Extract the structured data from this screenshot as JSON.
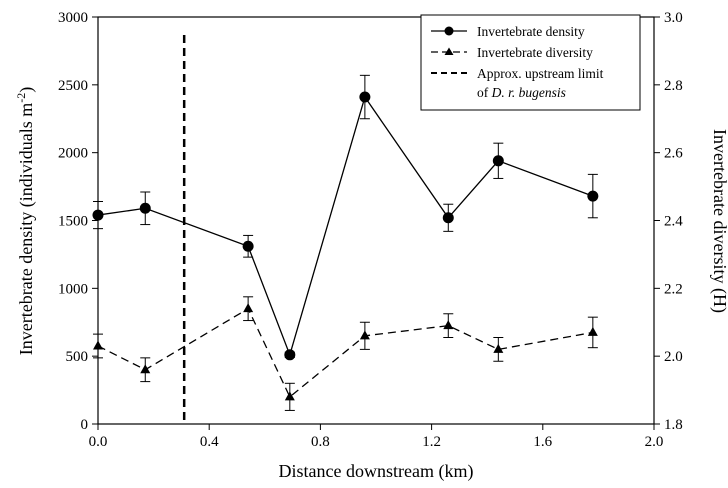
{
  "chart_data": {
    "type": "line",
    "xlabel": "Distance downstream (km)",
    "ylabel_left": "Invertebrate density (individuals m",
    "ylabel_left_sup": "-2",
    "ylabel_left_close": ")",
    "ylabel_right": "Invertebrate diversity (H)",
    "xlim": [
      0.0,
      2.0
    ],
    "ylim_left": [
      0,
      3000
    ],
    "ylim_right": [
      1.8,
      3.0
    ],
    "x_ticks": [
      "0.0",
      "0.4",
      "0.8",
      "1.2",
      "1.6",
      "2.0"
    ],
    "y_left_ticks": [
      "0",
      "500",
      "1000",
      "1500",
      "2000",
      "2500",
      "3000"
    ],
    "y_right_ticks": [
      "1.8",
      "2.0",
      "2.2",
      "2.4",
      "2.6",
      "2.8",
      "3.0"
    ],
    "vertical_line": {
      "x": 0.31
    },
    "series": [
      {
        "name": "Invertebrate density",
        "axis": "left",
        "marker": "circle",
        "line": "solid",
        "x": [
          0.0,
          0.17,
          0.54,
          0.69,
          0.96,
          1.26,
          1.44,
          1.78
        ],
        "y": [
          1540,
          1590,
          1310,
          510,
          2410,
          1520,
          1940,
          1680
        ],
        "err": [
          100,
          120,
          80,
          20,
          160,
          100,
          130,
          160
        ]
      },
      {
        "name": "Invertebrate diversity",
        "axis": "right",
        "marker": "triangle",
        "line": "dashed",
        "x": [
          0.0,
          0.17,
          0.54,
          0.69,
          0.96,
          1.26,
          1.44,
          1.78
        ],
        "y": [
          2.03,
          1.96,
          2.14,
          1.88,
          2.06,
          2.09,
          2.02,
          2.07
        ],
        "err": [
          0.035,
          0.035,
          0.035,
          0.04,
          0.04,
          0.035,
          0.035,
          0.045
        ]
      }
    ],
    "legend": {
      "placement": "top-right",
      "density": "Invertebrate density",
      "diversity": "Invertebrate diversity",
      "limit_line1": "Approx. upstream limit",
      "limit_line2_prefix": "of ",
      "limit_line2_italic": "D. r. bugensis"
    }
  }
}
